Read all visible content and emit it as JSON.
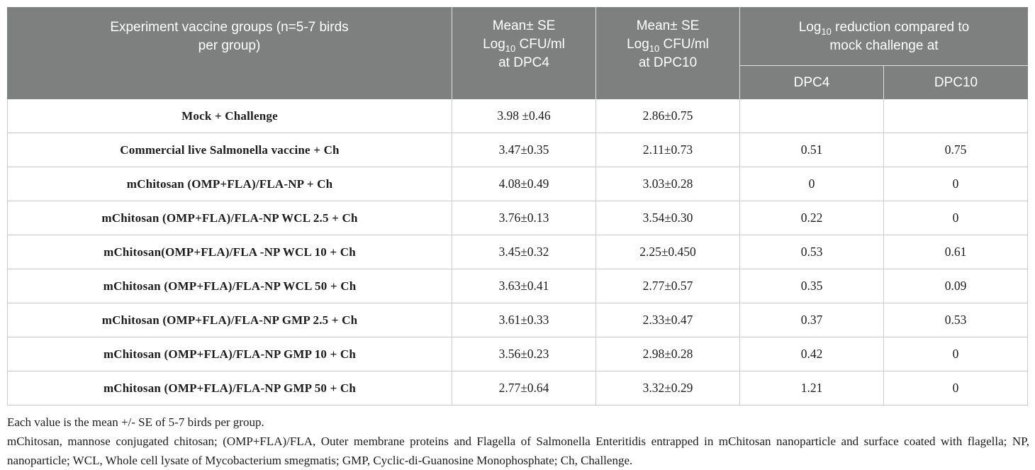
{
  "colors": {
    "header_bg": "#7e807f",
    "header_text": "#ffffff",
    "body_text": "#1c1c1c",
    "grid_border": "#cbcbcb"
  },
  "table": {
    "header": {
      "groups_l1": "Experiment vaccine groups (n=5-7 birds",
      "groups_l2": "per group)",
      "mean_l1": "Mean± SE",
      "log": "Log",
      "log_sub": "10",
      "cfu": " CFU/ml",
      "at_dpc4": "at DPC4",
      "at_dpc10": "at DPC10",
      "red_l1a": "Log",
      "red_l1sub": "10",
      "red_l1b": " reduction compared to",
      "red_l2": "mock challenge at",
      "sub_dpc4": "DPC4",
      "sub_dpc10": "DPC10"
    },
    "rows": [
      {
        "group": "Mock + Challenge",
        "dpc4": "3.98 ±0.46",
        "dpc10": "2.86±0.75",
        "red4": "",
        "red10": ""
      },
      {
        "group": "Commercial live Salmonella vaccine + Ch",
        "dpc4": "3.47±0.35",
        "dpc10": "2.11±0.73",
        "red4": "0.51",
        "red10": "0.75"
      },
      {
        "group": "mChitosan (OMP+FLA)/FLA-NP + Ch",
        "dpc4": "4.08±0.49",
        "dpc10": "3.03±0.28",
        "red4": "0",
        "red10": "0"
      },
      {
        "group": "mChitosan (OMP+FLA)/FLA-NP WCL 2.5 + Ch",
        "dpc4": "3.76±0.13",
        "dpc10": "3.54±0.30",
        "red4": "0.22",
        "red10": "0"
      },
      {
        "group": "mChitosan(OMP+FLA)/FLA -NP WCL 10 + Ch",
        "dpc4": "3.45±0.32",
        "dpc10": "2.25±0.450",
        "red4": "0.53",
        "red10": "0.61"
      },
      {
        "group": "mChitosan (OMP+FLA)/FLA-NP WCL 50 + Ch",
        "dpc4": "3.63±0.41",
        "dpc10": "2.77±0.57",
        "red4": "0.35",
        "red10": "0.09"
      },
      {
        "group": "mChitosan (OMP+FLA)/FLA-NP GMP 2.5 + Ch",
        "dpc4": "3.61±0.33",
        "dpc10": "2.33±0.47",
        "red4": "0.37",
        "red10": "0.53"
      },
      {
        "group": "mChitosan (OMP+FLA)/FLA-NP GMP 10 + Ch",
        "dpc4": "3.56±0.23",
        "dpc10": "2.98±0.28",
        "red4": "0.42",
        "red10": "0"
      },
      {
        "group": "mChitosan (OMP+FLA)/FLA-NP GMP 50 + Ch",
        "dpc4": "2.77±0.64",
        "dpc10": "3.32±0.29",
        "red4": "1.21",
        "red10": "0"
      }
    ]
  },
  "footnotes": {
    "line1": "Each value is the mean +/- SE of 5-7 birds per group.",
    "line2": "mChitosan, mannose conjugated chitosan; (OMP+FLA)/FLA, Outer membrane proteins and Flagella of Salmonella Enteritidis entrapped in mChitosan nanoparticle and surface coated with flagella; NP, nanoparticle; WCL, Whole cell lysate of Mycobacterium smegmatis; GMP, Cyclic-di-Guanosine Monophosphate; Ch, Challenge."
  }
}
